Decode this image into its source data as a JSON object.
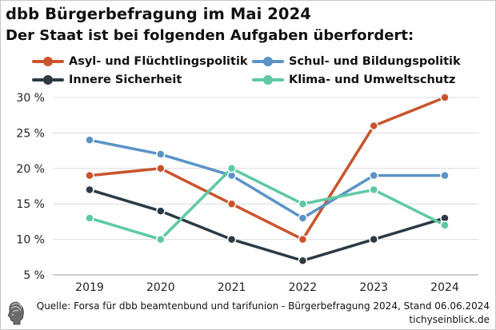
{
  "header": {
    "title": "dbb Bürgerbefragung im Mai 2024",
    "subtitle": "Der Staat ist bei folgenden Aufgaben überfordert:"
  },
  "footer": {
    "source": "Quelle: Forsa für dbb beamtenbund und tarifunion - Bürgerbefragung 2024, Stand 06.06.2024",
    "site": "tichyseinblick.de"
  },
  "chart_data": {
    "type": "line",
    "title": "Der Staat ist bei folgenden Aufgaben überfordert:",
    "x": [
      "2019",
      "2020",
      "2021",
      "2022",
      "2023",
      "2024"
    ],
    "y_ticks": [
      "5 %",
      "10 %",
      "15 %",
      "20 %",
      "25 %",
      "30 %"
    ],
    "y_tick_values": [
      5,
      10,
      15,
      20,
      25,
      30
    ],
    "ylim": [
      5,
      30
    ],
    "grid": "horizontal",
    "legend_position": "top",
    "series": [
      {
        "name": "Asyl- und Flüchtlingspolitik",
        "color": "#c9542c",
        "values": [
          19,
          20,
          15,
          10,
          26,
          30
        ]
      },
      {
        "name": "Schul- und Bildungspolitik",
        "color": "#5b93c7",
        "values": [
          24,
          22,
          19,
          13,
          19,
          19
        ]
      },
      {
        "name": "Innere Sicherheit",
        "color": "#2b3a45",
        "values": [
          17,
          14,
          10,
          7,
          10,
          13
        ]
      },
      {
        "name": "Klima- und Umweltschutz",
        "color": "#5ec9a3",
        "values": [
          13,
          10,
          20,
          15,
          17,
          12
        ]
      }
    ]
  }
}
